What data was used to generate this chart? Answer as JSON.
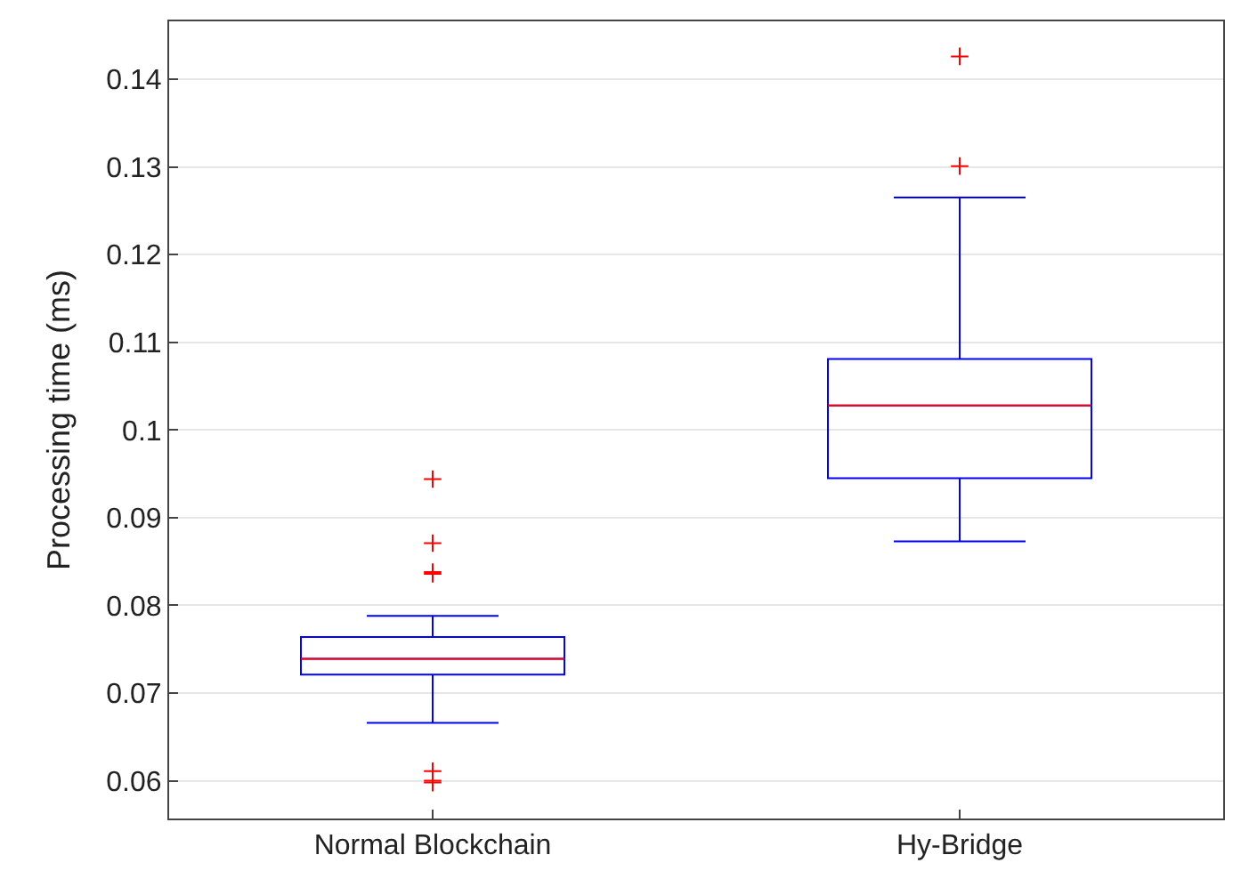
{
  "chart_data": {
    "type": "box",
    "ylabel": "Processing time (ms)",
    "categories": [
      "Normal Blockchain",
      "Hy-Bridge"
    ],
    "boxes": [
      {
        "low": 0.0666,
        "q1": 0.0721,
        "median": 0.0739,
        "q3": 0.0764,
        "high": 0.0788,
        "outliers": [
          0.0944,
          0.0871,
          0.0838,
          0.0836,
          0.0611,
          0.06,
          0.0598
        ]
      },
      {
        "low": 0.0873,
        "q1": 0.0945,
        "median": 0.1028,
        "q3": 0.1081,
        "high": 0.1265,
        "outliers": [
          0.1426,
          0.1301
        ]
      }
    ],
    "color": "#0000ff",
    "ylim": [
      0.0557,
      0.1466
    ],
    "yticks": [
      {
        "value": 0.06,
        "label": "0.06"
      },
      {
        "value": 0.07,
        "label": "0.07"
      },
      {
        "value": 0.08,
        "label": "0.08"
      },
      {
        "value": 0.09,
        "label": "0.09"
      },
      {
        "value": 0.1,
        "label": "0.1"
      },
      {
        "value": 0.11,
        "label": "0.11"
      },
      {
        "value": 0.12,
        "label": "0.12"
      },
      {
        "value": 0.13,
        "label": "0.13"
      },
      {
        "value": 0.14,
        "label": "0.14"
      }
    ],
    "grid": "y"
  }
}
